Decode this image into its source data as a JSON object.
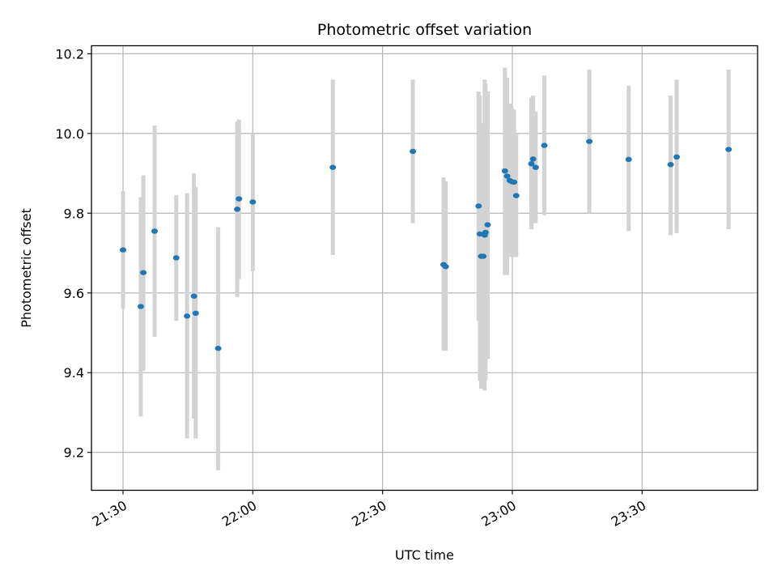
{
  "chart_data": {
    "type": "scatter",
    "title": "Photometric offset variation",
    "xlabel": "UTC time",
    "ylabel": "Photometric offset",
    "x_unit": "minutes after 21:00 UTC",
    "xlim": [
      22.7,
      176.7
    ],
    "ylim": [
      9.105,
      10.22
    ],
    "xticks": [
      {
        "value": 30,
        "label": "21:30"
      },
      {
        "value": 60,
        "label": "22:00"
      },
      {
        "value": 90,
        "label": "22:30"
      },
      {
        "value": 120,
        "label": "23:00"
      },
      {
        "value": 150,
        "label": "23:30"
      }
    ],
    "yticks": [
      {
        "value": 9.2,
        "label": "9.2"
      },
      {
        "value": 9.4,
        "label": "9.4"
      },
      {
        "value": 9.6,
        "label": "9.6"
      },
      {
        "value": 9.8,
        "label": "9.8"
      },
      {
        "value": 10.0,
        "label": "10.0"
      },
      {
        "value": 10.2,
        "label": "10.2"
      }
    ],
    "grid": true,
    "marker_color": "#1f77b4",
    "errorbar_color": "#d3d3d3",
    "points": [
      {
        "x": 30.0,
        "y": 9.708,
        "lo": 9.56,
        "hi": 9.855
      },
      {
        "x": 34.1,
        "y": 9.566,
        "lo": 9.29,
        "hi": 9.84
      },
      {
        "x": 34.7,
        "y": 9.651,
        "lo": 9.405,
        "hi": 9.895
      },
      {
        "x": 37.3,
        "y": 9.755,
        "lo": 9.49,
        "hi": 10.02
      },
      {
        "x": 42.3,
        "y": 9.688,
        "lo": 9.53,
        "hi": 9.845
      },
      {
        "x": 44.8,
        "y": 9.542,
        "lo": 9.235,
        "hi": 9.85
      },
      {
        "x": 46.4,
        "y": 9.592,
        "lo": 9.285,
        "hi": 9.9
      },
      {
        "x": 46.8,
        "y": 9.549,
        "lo": 9.235,
        "hi": 9.865
      },
      {
        "x": 52.0,
        "y": 9.461,
        "lo": 9.155,
        "hi": 9.765
      },
      {
        "x": 56.4,
        "y": 9.81,
        "lo": 9.59,
        "hi": 10.03
      },
      {
        "x": 56.8,
        "y": 9.836,
        "lo": 9.635,
        "hi": 10.035
      },
      {
        "x": 60.0,
        "y": 9.828,
        "lo": 9.655,
        "hi": 10.0
      },
      {
        "x": 78.5,
        "y": 9.915,
        "lo": 9.695,
        "hi": 10.135
      },
      {
        "x": 97.0,
        "y": 9.955,
        "lo": 9.775,
        "hi": 10.135
      },
      {
        "x": 104.1,
        "y": 9.671,
        "lo": 9.455,
        "hi": 9.89
      },
      {
        "x": 104.6,
        "y": 9.666,
        "lo": 9.455,
        "hi": 9.88
      },
      {
        "x": 112.2,
        "y": 9.818,
        "lo": 9.53,
        "hi": 10.105
      },
      {
        "x": 112.5,
        "y": 9.748,
        "lo": 9.38,
        "hi": 10.095
      },
      {
        "x": 112.8,
        "y": 9.692,
        "lo": 9.36,
        "hi": 10.025
      },
      {
        "x": 113.3,
        "y": 9.692,
        "lo": 9.365,
        "hi": 10.02
      },
      {
        "x": 113.6,
        "y": 9.745,
        "lo": 9.355,
        "hi": 10.135
      },
      {
        "x": 113.8,
        "y": 9.752,
        "lo": 9.38,
        "hi": 10.125
      },
      {
        "x": 114.3,
        "y": 9.771,
        "lo": 9.435,
        "hi": 10.105
      },
      {
        "x": 118.3,
        "y": 9.906,
        "lo": 9.645,
        "hi": 10.165
      },
      {
        "x": 118.8,
        "y": 9.893,
        "lo": 9.645,
        "hi": 10.14
      },
      {
        "x": 119.4,
        "y": 9.882,
        "lo": 9.69,
        "hi": 10.075
      },
      {
        "x": 119.9,
        "y": 9.879,
        "lo": 9.69,
        "hi": 10.065
      },
      {
        "x": 120.4,
        "y": 9.878,
        "lo": 9.69,
        "hi": 10.06
      },
      {
        "x": 120.9,
        "y": 9.844,
        "lo": 9.69,
        "hi": 10.0
      },
      {
        "x": 124.4,
        "y": 9.924,
        "lo": 9.76,
        "hi": 10.09
      },
      {
        "x": 124.8,
        "y": 9.936,
        "lo": 9.775,
        "hi": 10.095
      },
      {
        "x": 125.4,
        "y": 9.915,
        "lo": 9.775,
        "hi": 10.055
      },
      {
        "x": 127.4,
        "y": 9.97,
        "lo": 9.795,
        "hi": 10.145
      },
      {
        "x": 137.8,
        "y": 9.98,
        "lo": 9.8,
        "hi": 10.16
      },
      {
        "x": 146.9,
        "y": 9.935,
        "lo": 9.755,
        "hi": 10.12
      },
      {
        "x": 156.6,
        "y": 9.922,
        "lo": 9.745,
        "hi": 10.095
      },
      {
        "x": 158.0,
        "y": 9.941,
        "lo": 9.75,
        "hi": 10.135
      },
      {
        "x": 170.0,
        "y": 9.96,
        "lo": 9.76,
        "hi": 10.16
      }
    ]
  }
}
